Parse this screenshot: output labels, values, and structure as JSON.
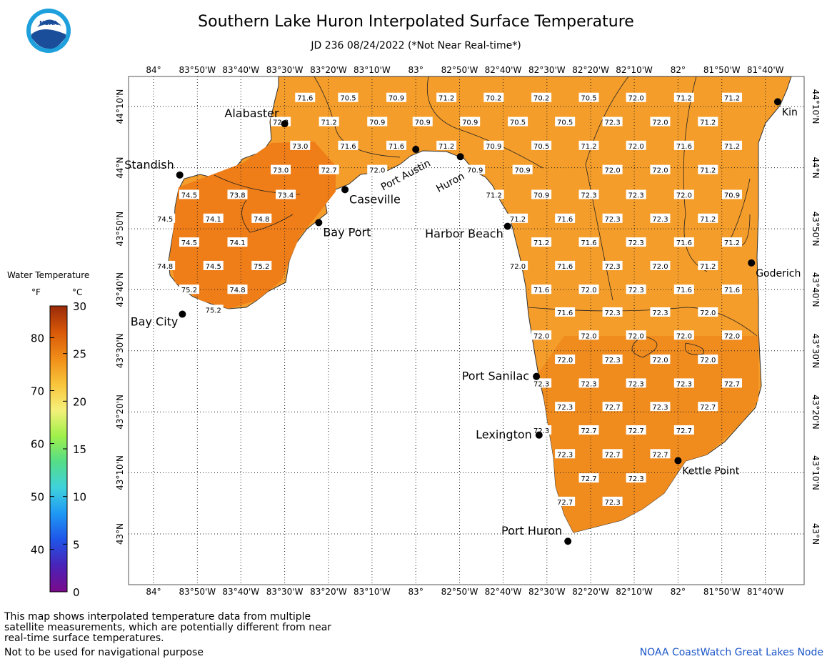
{
  "header": {
    "title": "Southern Lake Huron Interpolated Surface Temperature",
    "subtitle": "JD 236 08/24/2022 (*Not Near Real-time*)"
  },
  "logo": {
    "text": "NOAA",
    "icon": "noaa-logo-icon"
  },
  "axes": {
    "lon_labels": [
      "84°",
      "83°50'W",
      "83°40'W",
      "83°30'W",
      "83°20'W",
      "83°10'W",
      "83°",
      "82°50'W",
      "82°40'W",
      "82°30'W",
      "82°20'W",
      "82°10'W",
      "82°",
      "81°50'W",
      "81°40'W"
    ],
    "lon_values": [
      -84.0,
      -83.833,
      -83.667,
      -83.5,
      -83.333,
      -83.167,
      -83.0,
      -82.833,
      -82.667,
      -82.5,
      -82.333,
      -82.167,
      -82.0,
      -81.833,
      -81.667
    ],
    "lat_labels": [
      "44°10'N",
      "44°N",
      "43°50'N",
      "43°40'N",
      "43°30'N",
      "43°20'N",
      "43°10'N",
      "43°N"
    ],
    "lat_values": [
      44.167,
      44.0,
      43.833,
      43.667,
      43.5,
      43.333,
      43.167,
      43.0
    ]
  },
  "legend": {
    "title": "Water Temperature",
    "unit_f": "°F",
    "unit_c": "°C",
    "f_ticks": [
      "80",
      "70",
      "60",
      "50",
      "40"
    ],
    "f_values": [
      80,
      70,
      60,
      50,
      40
    ],
    "c_ticks": [
      "30",
      "25",
      "20",
      "15",
      "10",
      "5",
      "0"
    ],
    "c_values": [
      30,
      25,
      20,
      15,
      10,
      5,
      0
    ],
    "range_c": [
      0,
      30
    ],
    "gradient": [
      "#7a0a8a",
      "#4a23b8",
      "#1f55e8",
      "#1f98f5",
      "#3fd2dc",
      "#55dd88",
      "#9ff04a",
      "#f5f07a",
      "#f8c43a",
      "#f08c18",
      "#d85808",
      "#9a2a08"
    ]
  },
  "lake_color": "#f59d2a",
  "warm_color": "#ef7d18",
  "places": [
    {
      "name": "Alabaster",
      "lat": 44.12,
      "lon": -83.5,
      "label_pos": "above-left"
    },
    {
      "name": "Standish",
      "lat": 43.98,
      "lon": -83.9,
      "label_pos": "above-left"
    },
    {
      "name": "Caseville",
      "lat": 43.94,
      "lon": -83.27,
      "label_pos": "below-right"
    },
    {
      "name": "Bay Port",
      "lat": 43.85,
      "lon": -83.37,
      "label_pos": "below-right"
    },
    {
      "name": "Port Austin",
      "lat": 44.05,
      "lon": -83.0,
      "label_pos": "rotated"
    },
    {
      "name": "Huron",
      "lat": 44.03,
      "lon": -82.83,
      "label_pos": "rotated"
    },
    {
      "name": "Harbor Beach",
      "lat": 43.84,
      "lon": -82.65,
      "label_pos": "below-left"
    },
    {
      "name": "Bay City",
      "lat": 43.6,
      "lon": -83.89,
      "label_pos": "below-left"
    },
    {
      "name": "Port Sanilac",
      "lat": 43.43,
      "lon": -82.54,
      "label_pos": "left"
    },
    {
      "name": "Lexington",
      "lat": 43.27,
      "lon": -82.53,
      "label_pos": "left"
    },
    {
      "name": "Port Huron",
      "lat": 42.98,
      "lon": -82.42,
      "label_pos": "above-left"
    },
    {
      "name": "Kettle Point",
      "lat": 43.2,
      "lon": -82.0,
      "label_pos": "below-right"
    },
    {
      "name": "Goderich",
      "lat": 43.74,
      "lon": -81.72,
      "label_pos": "below-right"
    },
    {
      "name": "Kin",
      "lat": 44.18,
      "lon": -81.62,
      "label_pos": "below-right"
    }
  ],
  "temperatures": [
    {
      "v": "71.6",
      "lat": 44.191,
      "lon": -83.422
    },
    {
      "v": "70.5",
      "lat": 44.191,
      "lon": -83.258
    },
    {
      "v": "70.9",
      "lat": 44.191,
      "lon": -83.074
    },
    {
      "v": "71.2",
      "lat": 44.191,
      "lon": -82.883
    },
    {
      "v": "70.2",
      "lat": 44.191,
      "lon": -82.703
    },
    {
      "v": "70.2",
      "lat": 44.191,
      "lon": -82.521
    },
    {
      "v": "70.5",
      "lat": 44.191,
      "lon": -82.34
    },
    {
      "v": "72.0",
      "lat": 44.191,
      "lon": -82.16
    },
    {
      "v": "71.2",
      "lat": 44.191,
      "lon": -81.977
    },
    {
      "v": "71.2",
      "lat": 44.191,
      "lon": -81.794
    },
    {
      "v": "72.3",
      "lat": 44.125,
      "lon": -83.515
    },
    {
      "v": "71.2",
      "lat": 44.125,
      "lon": -83.331
    },
    {
      "v": "70.9",
      "lat": 44.125,
      "lon": -83.147
    },
    {
      "v": "70.9",
      "lat": 44.125,
      "lon": -82.974
    },
    {
      "v": "70.9",
      "lat": 44.125,
      "lon": -82.793
    },
    {
      "v": "70.5",
      "lat": 44.125,
      "lon": -82.611
    },
    {
      "v": "70.5",
      "lat": 44.125,
      "lon": -82.431
    },
    {
      "v": "72.3",
      "lat": 44.125,
      "lon": -82.25
    },
    {
      "v": "72.0",
      "lat": 44.125,
      "lon": -82.068
    },
    {
      "v": "71.2",
      "lat": 44.125,
      "lon": -81.886
    },
    {
      "v": "73.0",
      "lat": 44.06,
      "lon": -83.441
    },
    {
      "v": "71.6",
      "lat": 44.06,
      "lon": -83.258
    },
    {
      "v": "71.6",
      "lat": 44.06,
      "lon": -83.074
    },
    {
      "v": "71.2",
      "lat": 44.06,
      "lon": -82.883
    },
    {
      "v": "70.9",
      "lat": 44.06,
      "lon": -82.703
    },
    {
      "v": "70.5",
      "lat": 44.06,
      "lon": -82.521
    },
    {
      "v": "71.2",
      "lat": 44.06,
      "lon": -82.34
    },
    {
      "v": "72.0",
      "lat": 44.06,
      "lon": -82.16
    },
    {
      "v": "71.6",
      "lat": 44.06,
      "lon": -81.977
    },
    {
      "v": "71.2",
      "lat": 44.06,
      "lon": -81.794
    },
    {
      "v": "73.0",
      "lat": 43.994,
      "lon": -83.515
    },
    {
      "v": "72.7",
      "lat": 43.994,
      "lon": -83.331
    },
    {
      "v": "72.0",
      "lat": 43.994,
      "lon": -83.147
    },
    {
      "v": "70.9",
      "lat": 43.994,
      "lon": -82.774
    },
    {
      "v": "70.9",
      "lat": 43.994,
      "lon": -82.593
    },
    {
      "v": "72.0",
      "lat": 43.994,
      "lon": -82.25
    },
    {
      "v": "72.0",
      "lat": 43.994,
      "lon": -82.068
    },
    {
      "v": "71.2",
      "lat": 43.994,
      "lon": -81.886
    },
    {
      "v": "74.5",
      "lat": 43.926,
      "lon": -83.864
    },
    {
      "v": "73.8",
      "lat": 43.926,
      "lon": -83.68
    },
    {
      "v": "73.4",
      "lat": 43.926,
      "lon": -83.496
    },
    {
      "v": "71.2",
      "lat": 43.926,
      "lon": -82.702
    },
    {
      "v": "70.9",
      "lat": 43.926,
      "lon": -82.521
    },
    {
      "v": "72.3",
      "lat": 43.926,
      "lon": -82.34
    },
    {
      "v": "72.3",
      "lat": 43.926,
      "lon": -82.16
    },
    {
      "v": "72.0",
      "lat": 43.926,
      "lon": -81.977
    },
    {
      "v": "70.9",
      "lat": 43.926,
      "lon": -81.794
    },
    {
      "v": "74.5",
      "lat": 43.861,
      "lon": -83.956
    },
    {
      "v": "74.1",
      "lat": 43.861,
      "lon": -83.772
    },
    {
      "v": "74.8",
      "lat": 43.861,
      "lon": -83.588
    },
    {
      "v": "71.2",
      "lat": 43.861,
      "lon": -82.611
    },
    {
      "v": "71.6",
      "lat": 43.861,
      "lon": -82.431
    },
    {
      "v": "72.3",
      "lat": 43.861,
      "lon": -82.25
    },
    {
      "v": "72.3",
      "lat": 43.861,
      "lon": -82.068
    },
    {
      "v": "71.2",
      "lat": 43.861,
      "lon": -81.886
    },
    {
      "v": "74.5",
      "lat": 43.796,
      "lon": -83.864
    },
    {
      "v": "74.1",
      "lat": 43.796,
      "lon": -83.68
    },
    {
      "v": "71.2",
      "lat": 43.796,
      "lon": -82.521
    },
    {
      "v": "71.6",
      "lat": 43.796,
      "lon": -82.34
    },
    {
      "v": "72.3",
      "lat": 43.796,
      "lon": -82.16
    },
    {
      "v": "71.6",
      "lat": 43.796,
      "lon": -81.977
    },
    {
      "v": "71.2",
      "lat": 43.796,
      "lon": -81.794
    },
    {
      "v": "74.8",
      "lat": 43.732,
      "lon": -83.956
    },
    {
      "v": "74.5",
      "lat": 43.732,
      "lon": -83.772
    },
    {
      "v": "75.2",
      "lat": 43.732,
      "lon": -83.588
    },
    {
      "v": "72.0",
      "lat": 43.732,
      "lon": -82.611
    },
    {
      "v": "71.6",
      "lat": 43.732,
      "lon": -82.431
    },
    {
      "v": "72.3",
      "lat": 43.732,
      "lon": -82.25
    },
    {
      "v": "72.0",
      "lat": 43.732,
      "lon": -82.068
    },
    {
      "v": "71.2",
      "lat": 43.732,
      "lon": -81.886
    },
    {
      "v": "75.2",
      "lat": 43.667,
      "lon": -83.864
    },
    {
      "v": "74.8",
      "lat": 43.667,
      "lon": -83.68
    },
    {
      "v": "71.6",
      "lat": 43.667,
      "lon": -82.521
    },
    {
      "v": "72.0",
      "lat": 43.667,
      "lon": -82.34
    },
    {
      "v": "72.3",
      "lat": 43.667,
      "lon": -82.16
    },
    {
      "v": "71.6",
      "lat": 43.667,
      "lon": -81.977
    },
    {
      "v": "71.6",
      "lat": 43.667,
      "lon": -81.794
    },
    {
      "v": "75.2",
      "lat": 43.612,
      "lon": -83.772
    },
    {
      "v": "71.6",
      "lat": 43.605,
      "lon": -82.431
    },
    {
      "v": "72.3",
      "lat": 43.605,
      "lon": -82.25
    },
    {
      "v": "72.3",
      "lat": 43.605,
      "lon": -82.068
    },
    {
      "v": "72.0",
      "lat": 43.605,
      "lon": -81.886
    },
    {
      "v": "72.0",
      "lat": 43.542,
      "lon": -82.521
    },
    {
      "v": "72.0",
      "lat": 43.542,
      "lon": -82.34
    },
    {
      "v": "72.0",
      "lat": 43.542,
      "lon": -82.16
    },
    {
      "v": "72.0",
      "lat": 43.542,
      "lon": -81.977
    },
    {
      "v": "72.0",
      "lat": 43.542,
      "lon": -81.794
    },
    {
      "v": "72.0",
      "lat": 43.476,
      "lon": -82.431
    },
    {
      "v": "72.3",
      "lat": 43.476,
      "lon": -82.25
    },
    {
      "v": "72.0",
      "lat": 43.476,
      "lon": -82.068
    },
    {
      "v": "72.0",
      "lat": 43.476,
      "lon": -81.886
    },
    {
      "v": "72.3",
      "lat": 43.411,
      "lon": -82.521
    },
    {
      "v": "72.3",
      "lat": 43.411,
      "lon": -82.34
    },
    {
      "v": "72.3",
      "lat": 43.411,
      "lon": -82.16
    },
    {
      "v": "72.3",
      "lat": 43.411,
      "lon": -81.977
    },
    {
      "v": "72.7",
      "lat": 43.411,
      "lon": -81.794
    },
    {
      "v": "72.3",
      "lat": 43.347,
      "lon": -82.431
    },
    {
      "v": "72.7",
      "lat": 43.347,
      "lon": -82.25
    },
    {
      "v": "72.3",
      "lat": 43.347,
      "lon": -82.068
    },
    {
      "v": "72.7",
      "lat": 43.347,
      "lon": -81.886
    },
    {
      "v": "72.3",
      "lat": 43.283,
      "lon": -82.521
    },
    {
      "v": "72.7",
      "lat": 43.283,
      "lon": -82.34
    },
    {
      "v": "72.7",
      "lat": 43.283,
      "lon": -82.16
    },
    {
      "v": "72.7",
      "lat": 43.283,
      "lon": -81.977
    },
    {
      "v": "72.3",
      "lat": 43.218,
      "lon": -82.431
    },
    {
      "v": "72.7",
      "lat": 43.218,
      "lon": -82.25
    },
    {
      "v": "72.7",
      "lat": 43.218,
      "lon": -82.068
    },
    {
      "v": "72.7",
      "lat": 43.152,
      "lon": -82.34
    },
    {
      "v": "72.3",
      "lat": 43.152,
      "lon": -82.16
    },
    {
      "v": "72.7",
      "lat": 43.088,
      "lon": -82.431
    },
    {
      "v": "72.3",
      "lat": 43.088,
      "lon": -82.25
    }
  ],
  "footer": {
    "note": "This map shows interpolated temperature data from multiple satellite measurements, which are potentially different from near real-time surface temperatures.",
    "navigation": "Not to be used for navigational purpose",
    "credit": "NOAA CoastWatch Great Lakes Node"
  }
}
